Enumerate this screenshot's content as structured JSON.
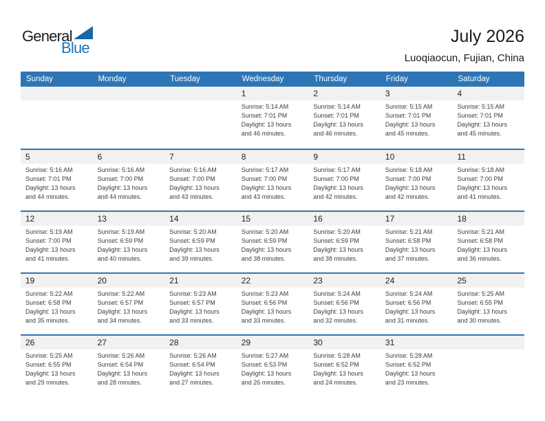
{
  "logo": {
    "part1": "General",
    "part2": "Blue"
  },
  "header": {
    "title": "July 2026",
    "subtitle": "Luoqiaocun, Fujian, China"
  },
  "colors": {
    "header_bg": "#2E75B6",
    "row_line": "#2E75B6",
    "band_bg": "#F1F1F1",
    "logo_blue": "#1B75BC",
    "logo_triangle": "#1668A8"
  },
  "calendar": {
    "day_headers": [
      "Sunday",
      "Monday",
      "Tuesday",
      "Wednesday",
      "Thursday",
      "Friday",
      "Saturday"
    ],
    "weeks": [
      [
        null,
        null,
        null,
        {
          "day": "1",
          "lines": [
            "Sunrise: 5:14 AM",
            "Sunset: 7:01 PM",
            "Daylight: 13 hours",
            "and 46 minutes."
          ]
        },
        {
          "day": "2",
          "lines": [
            "Sunrise: 5:14 AM",
            "Sunset: 7:01 PM",
            "Daylight: 13 hours",
            "and 46 minutes."
          ]
        },
        {
          "day": "3",
          "lines": [
            "Sunrise: 5:15 AM",
            "Sunset: 7:01 PM",
            "Daylight: 13 hours",
            "and 45 minutes."
          ]
        },
        {
          "day": "4",
          "lines": [
            "Sunrise: 5:15 AM",
            "Sunset: 7:01 PM",
            "Daylight: 13 hours",
            "and 45 minutes."
          ]
        }
      ],
      [
        {
          "day": "5",
          "lines": [
            "Sunrise: 5:16 AM",
            "Sunset: 7:01 PM",
            "Daylight: 13 hours",
            "and 44 minutes."
          ]
        },
        {
          "day": "6",
          "lines": [
            "Sunrise: 5:16 AM",
            "Sunset: 7:00 PM",
            "Daylight: 13 hours",
            "and 44 minutes."
          ]
        },
        {
          "day": "7",
          "lines": [
            "Sunrise: 5:16 AM",
            "Sunset: 7:00 PM",
            "Daylight: 13 hours",
            "and 43 minutes."
          ]
        },
        {
          "day": "8",
          "lines": [
            "Sunrise: 5:17 AM",
            "Sunset: 7:00 PM",
            "Daylight: 13 hours",
            "and 43 minutes."
          ]
        },
        {
          "day": "9",
          "lines": [
            "Sunrise: 5:17 AM",
            "Sunset: 7:00 PM",
            "Daylight: 13 hours",
            "and 42 minutes."
          ]
        },
        {
          "day": "10",
          "lines": [
            "Sunrise: 5:18 AM",
            "Sunset: 7:00 PM",
            "Daylight: 13 hours",
            "and 42 minutes."
          ]
        },
        {
          "day": "11",
          "lines": [
            "Sunrise: 5:18 AM",
            "Sunset: 7:00 PM",
            "Daylight: 13 hours",
            "and 41 minutes."
          ]
        }
      ],
      [
        {
          "day": "12",
          "lines": [
            "Sunrise: 5:19 AM",
            "Sunset: 7:00 PM",
            "Daylight: 13 hours",
            "and 41 minutes."
          ]
        },
        {
          "day": "13",
          "lines": [
            "Sunrise: 5:19 AM",
            "Sunset: 6:59 PM",
            "Daylight: 13 hours",
            "and 40 minutes."
          ]
        },
        {
          "day": "14",
          "lines": [
            "Sunrise: 5:20 AM",
            "Sunset: 6:59 PM",
            "Daylight: 13 hours",
            "and 39 minutes."
          ]
        },
        {
          "day": "15",
          "lines": [
            "Sunrise: 5:20 AM",
            "Sunset: 6:59 PM",
            "Daylight: 13 hours",
            "and 38 minutes."
          ]
        },
        {
          "day": "16",
          "lines": [
            "Sunrise: 5:20 AM",
            "Sunset: 6:59 PM",
            "Daylight: 13 hours",
            "and 38 minutes."
          ]
        },
        {
          "day": "17",
          "lines": [
            "Sunrise: 5:21 AM",
            "Sunset: 6:58 PM",
            "Daylight: 13 hours",
            "and 37 minutes."
          ]
        },
        {
          "day": "18",
          "lines": [
            "Sunrise: 5:21 AM",
            "Sunset: 6:58 PM",
            "Daylight: 13 hours",
            "and 36 minutes."
          ]
        }
      ],
      [
        {
          "day": "19",
          "lines": [
            "Sunrise: 5:22 AM",
            "Sunset: 6:58 PM",
            "Daylight: 13 hours",
            "and 35 minutes."
          ]
        },
        {
          "day": "20",
          "lines": [
            "Sunrise: 5:22 AM",
            "Sunset: 6:57 PM",
            "Daylight: 13 hours",
            "and 34 minutes."
          ]
        },
        {
          "day": "21",
          "lines": [
            "Sunrise: 5:23 AM",
            "Sunset: 6:57 PM",
            "Daylight: 13 hours",
            "and 33 minutes."
          ]
        },
        {
          "day": "22",
          "lines": [
            "Sunrise: 5:23 AM",
            "Sunset: 6:56 PM",
            "Daylight: 13 hours",
            "and 33 minutes."
          ]
        },
        {
          "day": "23",
          "lines": [
            "Sunrise: 5:24 AM",
            "Sunset: 6:56 PM",
            "Daylight: 13 hours",
            "and 32 minutes."
          ]
        },
        {
          "day": "24",
          "lines": [
            "Sunrise: 5:24 AM",
            "Sunset: 6:56 PM",
            "Daylight: 13 hours",
            "and 31 minutes."
          ]
        },
        {
          "day": "25",
          "lines": [
            "Sunrise: 5:25 AM",
            "Sunset: 6:55 PM",
            "Daylight: 13 hours",
            "and 30 minutes."
          ]
        }
      ],
      [
        {
          "day": "26",
          "lines": [
            "Sunrise: 5:25 AM",
            "Sunset: 6:55 PM",
            "Daylight: 13 hours",
            "and 29 minutes."
          ]
        },
        {
          "day": "27",
          "lines": [
            "Sunrise: 5:26 AM",
            "Sunset: 6:54 PM",
            "Daylight: 13 hours",
            "and 28 minutes."
          ]
        },
        {
          "day": "28",
          "lines": [
            "Sunrise: 5:26 AM",
            "Sunset: 6:54 PM",
            "Daylight: 13 hours",
            "and 27 minutes."
          ]
        },
        {
          "day": "29",
          "lines": [
            "Sunrise: 5:27 AM",
            "Sunset: 6:53 PM",
            "Daylight: 13 hours",
            "and 26 minutes."
          ]
        },
        {
          "day": "30",
          "lines": [
            "Sunrise: 5:28 AM",
            "Sunset: 6:52 PM",
            "Daylight: 13 hours",
            "and 24 minutes."
          ]
        },
        {
          "day": "31",
          "lines": [
            "Sunrise: 5:28 AM",
            "Sunset: 6:52 PM",
            "Daylight: 13 hours",
            "and 23 minutes."
          ]
        },
        null
      ]
    ]
  }
}
